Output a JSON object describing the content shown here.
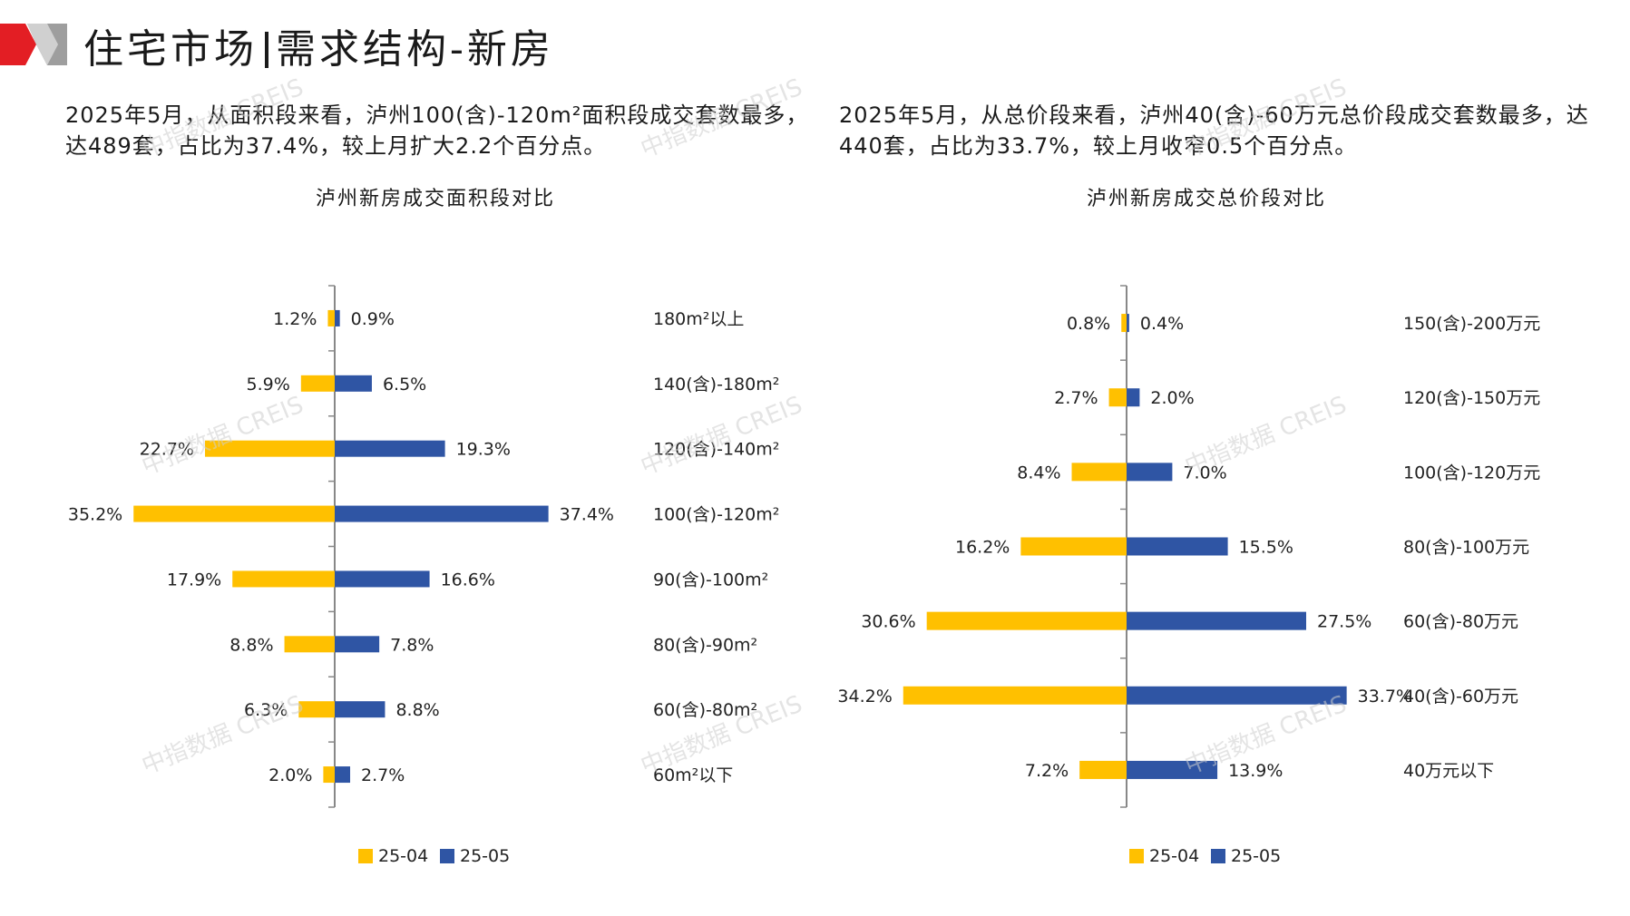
{
  "header": {
    "title_market": "住宅市场",
    "title_topic": "需求结构-新房"
  },
  "descriptions": {
    "left": "2025年5月，从面积段来看，泸州100(含)-120m²面积段成交套数最多，达489套，占比为37.4%，较上月扩大2.2个百分点。",
    "right": "2025年5月，从总价段来看，泸州40(含)-60万元总价段成交套数最多，达440套，占比为33.7%，较上月收窄0.5个百分点。"
  },
  "watermark": {
    "text": "中指数据 CREIS"
  },
  "colors": {
    "yellow": "#FFC000",
    "blue": "#2F55A4",
    "logo_red": "#E31E24",
    "logo_gray": "#9E9E9E",
    "watermark": "#cfcfcf",
    "axis": "#888888"
  },
  "chart_data": [
    {
      "type": "bar",
      "orientation": "horizontal-diverging",
      "title": "泸州新房成交面积段对比",
      "categories": [
        "180m²以上",
        "140(含)-180m²",
        "120(含)-140m²",
        "100(含)-120m²",
        "90(含)-100m²",
        "80(含)-90m²",
        "60(含)-80m²",
        "60m²以下"
      ],
      "series": [
        {
          "name": "25-04",
          "values": [
            1.2,
            5.9,
            22.7,
            35.2,
            17.9,
            8.8,
            6.3,
            2.0
          ],
          "labels": [
            "1.2%",
            "5.9%",
            "22.7%",
            "35.2%",
            "17.9%",
            "8.8%",
            "6.3%",
            "2.0%"
          ]
        },
        {
          "name": "25-05",
          "values": [
            0.9,
            6.5,
            19.3,
            37.4,
            16.6,
            7.8,
            8.8,
            2.7
          ],
          "labels": [
            "0.9%",
            "6.5%",
            "19.3%",
            "37.4%",
            "16.6%",
            "7.8%",
            "8.8%",
            "2.7%"
          ]
        }
      ],
      "unit": "%",
      "max": 40,
      "legend_position": "bottom"
    },
    {
      "type": "bar",
      "orientation": "horizontal-diverging",
      "title": "泸州新房成交总价段对比",
      "categories": [
        "150(含)-200万元",
        "120(含)-150万元",
        "100(含)-120万元",
        "80(含)-100万元",
        "60(含)-80万元",
        "40(含)-60万元",
        "40万元以下"
      ],
      "series": [
        {
          "name": "25-04",
          "values": [
            0.8,
            2.7,
            8.4,
            16.2,
            30.6,
            34.2,
            7.2
          ],
          "labels": [
            "0.8%",
            "2.7%",
            "8.4%",
            "16.2%",
            "30.6%",
            "34.2%",
            "7.2%"
          ]
        },
        {
          "name": "25-05",
          "values": [
            0.4,
            2.0,
            7.0,
            15.5,
            27.5,
            33.7,
            13.9
          ],
          "labels": [
            "0.4%",
            "2.0%",
            "7.0%",
            "15.5%",
            "27.5%",
            "33.7%",
            "13.9%"
          ]
        }
      ],
      "unit": "%",
      "max": 40,
      "legend_position": "bottom"
    }
  ]
}
